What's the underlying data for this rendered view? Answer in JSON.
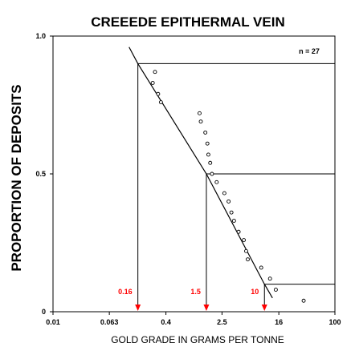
{
  "chart_data": {
    "type": "scatter",
    "title": "CREEEDE EPITHERMAL VEIN",
    "xlabel": "GOLD GRADE IN GRAMS PER TONNE",
    "ylabel": "PROPORTION OF DEPOSITS",
    "x_scale": "log",
    "xlim": [
      0.01,
      100
    ],
    "ylim": [
      0,
      1
    ],
    "x_ticks": [
      {
        "value": 0.01,
        "label": "0.01"
      },
      {
        "value": 0.063,
        "label": "0.063"
      },
      {
        "value": 0.4,
        "label": "0.4"
      },
      {
        "value": 2.5,
        "label": "2.5"
      },
      {
        "value": 16,
        "label": "16"
      },
      {
        "value": 100,
        "label": "100"
      }
    ],
    "y_ticks": [
      {
        "value": 0,
        "label": "0"
      },
      {
        "value": 0.5,
        "label": "0.5"
      },
      {
        "value": 1,
        "label": "1.0"
      }
    ],
    "grid": false,
    "annotation_n": "n = 27",
    "points": [
      {
        "x": 0.28,
        "y": 0.87
      },
      {
        "x": 0.26,
        "y": 0.83
      },
      {
        "x": 0.31,
        "y": 0.79
      },
      {
        "x": 0.34,
        "y": 0.76
      },
      {
        "x": 1.2,
        "y": 0.72
      },
      {
        "x": 1.25,
        "y": 0.69
      },
      {
        "x": 1.45,
        "y": 0.65
      },
      {
        "x": 1.55,
        "y": 0.61
      },
      {
        "x": 1.6,
        "y": 0.57
      },
      {
        "x": 1.7,
        "y": 0.54
      },
      {
        "x": 1.8,
        "y": 0.5
      },
      {
        "x": 2.1,
        "y": 0.47
      },
      {
        "x": 2.7,
        "y": 0.43
      },
      {
        "x": 3.1,
        "y": 0.4
      },
      {
        "x": 3.4,
        "y": 0.36
      },
      {
        "x": 3.7,
        "y": 0.33
      },
      {
        "x": 4.3,
        "y": 0.29
      },
      {
        "x": 5.1,
        "y": 0.26
      },
      {
        "x": 5.5,
        "y": 0.22
      },
      {
        "x": 5.8,
        "y": 0.19
      },
      {
        "x": 9.0,
        "y": 0.16
      },
      {
        "x": 12.0,
        "y": 0.12
      },
      {
        "x": 14.5,
        "y": 0.08
      },
      {
        "x": 36.0,
        "y": 0.04
      }
    ],
    "fitted_curve": [
      {
        "x": 0.12,
        "y": 0.96
      },
      {
        "x": 0.16,
        "y": 0.9
      },
      {
        "x": 1.5,
        "y": 0.5
      },
      {
        "x": 10.0,
        "y": 0.1
      },
      {
        "x": 13.0,
        "y": 0.05
      }
    ],
    "percentiles": [
      {
        "label": "0.16",
        "x": 0.16,
        "y": 0.9,
        "color": "#ff0000"
      },
      {
        "label": "1.5",
        "x": 1.5,
        "y": 0.5,
        "color": "#ff0000"
      },
      {
        "label": "10",
        "x": 10.0,
        "y": 0.1,
        "color": "#ff0000"
      }
    ]
  }
}
